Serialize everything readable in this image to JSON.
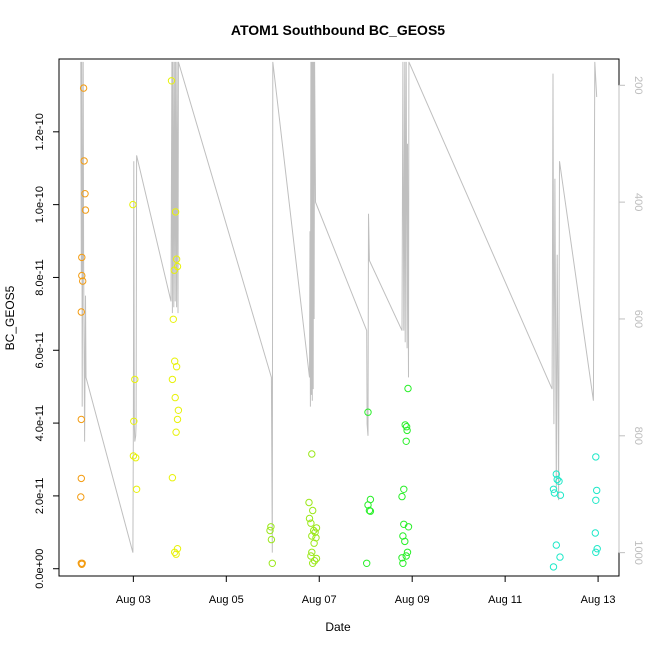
{
  "chart_data": {
    "type": "scatter",
    "title": "ATOM1 Southbound BC_GEOS5",
    "xlabel": "Date",
    "ylabel": "BC_GEOS5",
    "x_ticks": [
      "Aug 03",
      "Aug 05",
      "Aug 07",
      "Aug 09",
      "Aug 11",
      "Aug 13"
    ],
    "x_tick_days": [
      3,
      5,
      7,
      9,
      11,
      13
    ],
    "x_range_days": [
      1.4,
      13.45
    ],
    "y_ticks": [
      "0.0e+00",
      "2.0e-11",
      "4.0e-11",
      "6.0e-11",
      "8.0e-11",
      "1.0e-10",
      "1.2e-10"
    ],
    "y_tick_values": [
      0,
      2e-11,
      4e-11,
      6e-11,
      8e-11,
      1e-10,
      1.2e-10
    ],
    "ylim": [
      -2e-12,
      1.4e-10
    ],
    "y2_ticks": [
      "200",
      "400",
      "600",
      "800",
      "1000"
    ],
    "y2_tick_values": [
      200,
      400,
      600,
      800,
      1000
    ],
    "y2lim": [
      1040,
      155
    ],
    "y2_reversed": true,
    "grid": false,
    "colors": {
      "points_early": "#f39c12",
      "points_mid1": "#e8f20a",
      "points_mid2": "#9be81a",
      "points_mid3": "#29ef29",
      "points_late": "#1fe8c8",
      "right_axis_line": "#bfbfbf",
      "right_axis_text": "#bdbdbd"
    },
    "series": [
      {
        "color": "#f39c12",
        "points": [
          [
            1.93,
            1.32e-10
          ],
          [
            1.94,
            1.12e-10
          ],
          [
            1.96,
            1.03e-10
          ],
          [
            1.97,
            9.85e-11
          ],
          [
            1.89,
            8.55e-11
          ],
          [
            1.89,
            8.05e-11
          ],
          [
            1.91,
            7.9e-11
          ],
          [
            1.88,
            7.05e-11
          ],
          [
            1.88,
            4.1e-11
          ],
          [
            1.88,
            2.48e-11
          ],
          [
            1.87,
            1.97e-11
          ],
          [
            1.88,
            1.5e-12
          ],
          [
            1.89,
            1.2e-12
          ],
          [
            1.9,
            1.5e-12
          ]
        ]
      },
      {
        "color": "#e8f20a",
        "points": [
          [
            2.99,
            1e-10
          ],
          [
            3.03,
            5.2e-11
          ],
          [
            3.01,
            4.05e-11
          ],
          [
            3.0,
            3.1e-11
          ],
          [
            3.05,
            3.05e-11
          ],
          [
            3.07,
            2.18e-11
          ],
          [
            3.82,
            1.34e-10
          ],
          [
            3.91,
            9.8e-11
          ],
          [
            3.93,
            8.5e-11
          ],
          [
            3.95,
            8.3e-11
          ],
          [
            3.88,
            8.2e-11
          ],
          [
            3.86,
            6.85e-11
          ],
          [
            3.89,
            5.7e-11
          ],
          [
            3.93,
            5.55e-11
          ],
          [
            3.84,
            5.2e-11
          ],
          [
            3.9,
            4.7e-11
          ],
          [
            3.97,
            4.35e-11
          ],
          [
            3.95,
            4.1e-11
          ],
          [
            3.92,
            3.75e-11
          ],
          [
            3.84,
            2.5e-11
          ],
          [
            3.95,
            5.5e-12
          ],
          [
            3.89,
            4.5e-12
          ],
          [
            3.92,
            4e-12
          ]
        ]
      },
      {
        "color": "#9be81a",
        "points": [
          [
            5.96,
            1.15e-11
          ],
          [
            5.94,
            1.05e-11
          ],
          [
            5.97,
            8e-12
          ],
          [
            5.99,
            1.5e-12
          ],
          [
            6.78,
            1.82e-11
          ],
          [
            6.86,
            1.6e-11
          ],
          [
            6.79,
            1.38e-11
          ],
          [
            6.82,
            1.25e-11
          ],
          [
            6.94,
            1.12e-11
          ],
          [
            6.88,
            1.05e-11
          ],
          [
            6.91,
            1e-11
          ],
          [
            6.84,
            9e-12
          ],
          [
            6.93,
            8.5e-12
          ],
          [
            6.89,
            7e-12
          ],
          [
            6.84,
            4.5e-12
          ],
          [
            6.82,
            3.5e-12
          ],
          [
            6.94,
            2.8e-12
          ],
          [
            6.9,
            2.2e-12
          ],
          [
            6.86,
            1.5e-12
          ],
          [
            6.84,
            3.15e-11
          ]
        ]
      },
      {
        "color": "#29ef29",
        "points": [
          [
            8.05,
            4.3e-11
          ],
          [
            8.05,
            1.75e-11
          ],
          [
            8.08,
            1.6e-11
          ],
          [
            8.1,
            1.58e-11
          ],
          [
            8.1,
            1.9e-11
          ],
          [
            8.02,
            1.5e-12
          ],
          [
            8.91,
            4.95e-11
          ],
          [
            8.85,
            3.95e-11
          ],
          [
            8.88,
            3.9e-11
          ],
          [
            8.89,
            3.8e-11
          ],
          [
            8.87,
            3.5e-11
          ],
          [
            8.82,
            2.18e-11
          ],
          [
            8.78,
            1.98e-11
          ],
          [
            8.82,
            1.22e-11
          ],
          [
            8.92,
            1.15e-11
          ],
          [
            8.8,
            9e-12
          ],
          [
            8.84,
            7.5e-12
          ],
          [
            8.9,
            4.5e-12
          ],
          [
            8.87,
            3.5e-12
          ],
          [
            8.78,
            3e-12
          ],
          [
            8.8,
            1.5e-12
          ]
        ]
      },
      {
        "color": "#1fe8c8",
        "points": [
          [
            12.1,
            2.6e-11
          ],
          [
            12.12,
            2.45e-11
          ],
          [
            12.16,
            2.4e-11
          ],
          [
            12.04,
            2.18e-11
          ],
          [
            12.06,
            2.08e-11
          ],
          [
            12.19,
            2.02e-11
          ],
          [
            12.1,
            6.5e-12
          ],
          [
            12.18,
            3.2e-12
          ],
          [
            12.04,
            5e-13
          ],
          [
            12.95,
            3.07e-11
          ],
          [
            12.97,
            2.15e-11
          ],
          [
            12.95,
            1.88e-11
          ],
          [
            12.94,
            9.8e-12
          ],
          [
            12.98,
            5.5e-12
          ],
          [
            12.95,
            4.5e-12
          ]
        ]
      }
    ],
    "altitude_trace": [
      [
        1.87,
        160
      ],
      [
        1.88,
        520
      ],
      [
        1.89,
        160
      ],
      [
        1.9,
        750
      ],
      [
        1.92,
        160
      ],
      [
        1.93,
        490
      ],
      [
        1.95,
        810
      ],
      [
        1.97,
        560
      ],
      [
        1.98,
        700
      ],
      [
        2.99,
        1000
      ],
      [
        3.0,
        760
      ],
      [
        3.01,
        330
      ],
      [
        3.02,
        780
      ],
      [
        3.03,
        810
      ],
      [
        3.05,
        800
      ],
      [
        3.06,
        780
      ],
      [
        3.07,
        320
      ],
      [
        3.81,
        570
      ],
      [
        3.83,
        160
      ],
      [
        3.84,
        590
      ],
      [
        3.85,
        160
      ],
      [
        3.87,
        580
      ],
      [
        3.88,
        160
      ],
      [
        3.9,
        570
      ],
      [
        3.91,
        160
      ],
      [
        3.93,
        580
      ],
      [
        3.94,
        160
      ],
      [
        3.96,
        590
      ],
      [
        3.97,
        160
      ],
      [
        5.97,
        700
      ],
      [
        5.99,
        1000
      ],
      [
        6.0,
        160
      ],
      [
        6.79,
        700
      ],
      [
        6.8,
        450
      ],
      [
        6.81,
        750
      ],
      [
        6.82,
        160
      ],
      [
        6.83,
        730
      ],
      [
        6.84,
        160
      ],
      [
        6.85,
        740
      ],
      [
        6.86,
        160
      ],
      [
        6.87,
        720
      ],
      [
        6.88,
        160
      ],
      [
        6.89,
        600
      ],
      [
        6.9,
        160
      ],
      [
        6.92,
        400
      ],
      [
        8.02,
        620
      ],
      [
        8.03,
        780
      ],
      [
        8.05,
        800
      ],
      [
        8.06,
        420
      ],
      [
        8.08,
        500
      ],
      [
        8.78,
        620
      ],
      [
        8.8,
        160
      ],
      [
        8.82,
        620
      ],
      [
        8.84,
        160
      ],
      [
        8.85,
        640
      ],
      [
        8.87,
        160
      ],
      [
        8.89,
        650
      ],
      [
        8.9,
        300
      ],
      [
        8.92,
        700
      ],
      [
        8.93,
        160
      ],
      [
        12.01,
        720
      ],
      [
        12.03,
        180
      ],
      [
        12.05,
        780
      ],
      [
        12.07,
        360
      ],
      [
        12.1,
        890
      ],
      [
        12.12,
        490
      ],
      [
        12.15,
        910
      ],
      [
        12.17,
        330
      ],
      [
        12.9,
        740
      ],
      [
        12.93,
        160
      ],
      [
        12.97,
        220
      ]
    ]
  }
}
